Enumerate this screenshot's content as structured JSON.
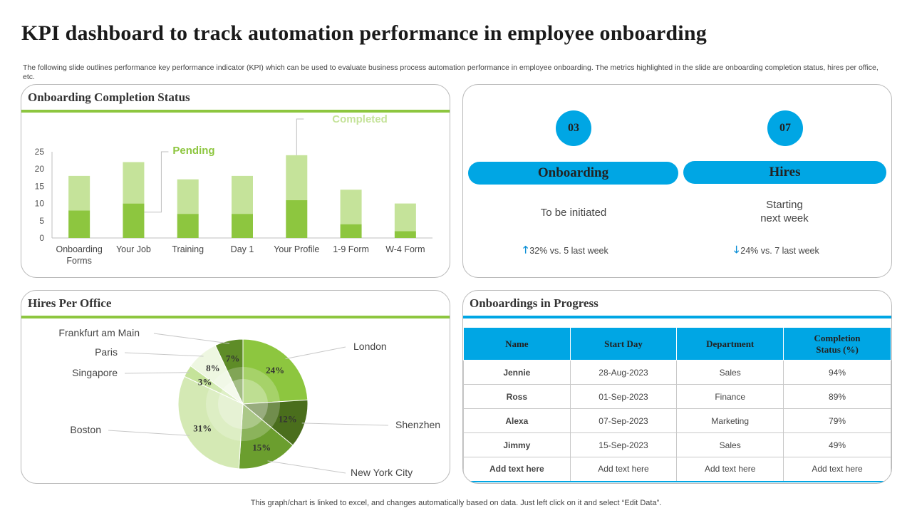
{
  "page": {
    "title": "KPI dashboard to track automation performance in employee onboarding",
    "subtitle": "The following slide outlines performance key performance indicator (KPI) which can be used to evaluate business process automation performance in employee onboarding. The metrics highlighted in the slide are onboarding completion status, hires per office, etc.",
    "footer": "This graph/chart is linked to excel,  and changes automatically based on data. Just left click on it and select “Edit Data”."
  },
  "colors": {
    "accent_green": "#8dc63f",
    "accent_blue": "#00a6e4",
    "pending": "#8dc63f",
    "completed": "#c5e39a"
  },
  "completion_panel": {
    "title": "Onboarding Completion Status"
  },
  "kpi_panel": {
    "onboarding": {
      "count": "03",
      "label": "Onboarding",
      "status": "To be initiated",
      "trend_icon": "arrow-up-icon",
      "trend_text": "32% vs.  5 last week"
    },
    "hires": {
      "count": "07",
      "label": "Hires",
      "status_line1": "Starting",
      "status_line2": "next week",
      "trend_icon": "arrow-down-icon",
      "trend_text": "24% vs.  7 last week"
    }
  },
  "hires_panel": {
    "title": "Hires Per Office"
  },
  "progress_panel": {
    "title": "Onboardings in Progress",
    "columns": [
      "Name",
      "Start Day",
      "Department",
      "Completion Status (%)"
    ],
    "rows": [
      [
        "Jennie",
        "28-Aug-2023",
        "Sales",
        "94%"
      ],
      [
        "Ross",
        "01-Sep-2023",
        "Finance",
        "89%"
      ],
      [
        "Alexa",
        "07-Sep-2023",
        "Marketing",
        "79%"
      ],
      [
        "Jimmy",
        "15-Sep-2023",
        "Sales",
        "49%"
      ],
      [
        "Add text here",
        "Add text here",
        "Add text here",
        "Add text here"
      ]
    ]
  },
  "chart_data": [
    {
      "type": "bar",
      "stacked": true,
      "categories": [
        "Onboarding Forms",
        "Your Job",
        "Training",
        "Day 1",
        "Your Profile",
        "1-9 Form",
        "W-4 Form"
      ],
      "series": [
        {
          "name": "Pending",
          "values": [
            8,
            10,
            7,
            7,
            11,
            4,
            2
          ],
          "color": "#8dc63f"
        },
        {
          "name": "Completed",
          "values": [
            10,
            12,
            10,
            11,
            13,
            10,
            8
          ],
          "color": "#c5e39a"
        }
      ],
      "yticks": [
        0,
        5,
        10,
        15,
        20,
        25
      ],
      "ylim": [
        0,
        25
      ],
      "grid": false,
      "legend": "callout-labels"
    },
    {
      "type": "pie",
      "labels": [
        "London",
        "Shenzhen",
        "New York City",
        "Boston",
        "Singapore",
        "Paris",
        "Frankfurt am Main"
      ],
      "values": [
        24,
        12,
        15,
        31,
        3,
        8,
        7
      ],
      "value_labels": [
        "24%",
        "12%",
        "15%",
        "31%",
        "3%",
        "8%",
        "7%"
      ],
      "colors": [
        "#8dc63f",
        "#4a6e1c",
        "#6b9e2e",
        "#d4e9b4",
        "#c5e39a",
        "#eef7e1",
        "#5e8c27"
      ]
    }
  ]
}
